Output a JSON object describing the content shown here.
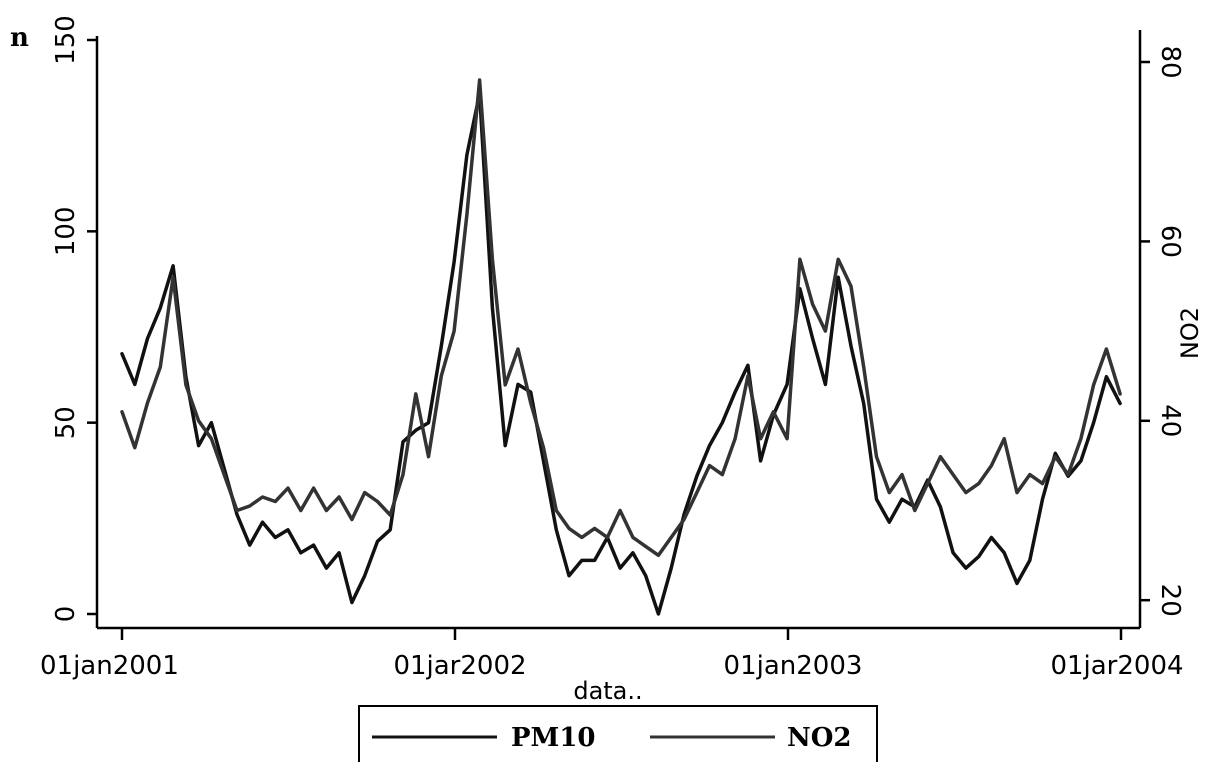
{
  "corner_label": "n",
  "chart_data": {
    "type": "line",
    "title": "",
    "xlabel": "data..",
    "ylabel_left": "",
    "ylabel_right": "NO2",
    "x_ticks": [
      "01jan2001",
      "01jar2002",
      "01jan2003",
      "01jar2004"
    ],
    "y_left_ticks": [
      "0",
      "50",
      "100",
      "150"
    ],
    "y_right_ticks": [
      "20",
      "40",
      "60",
      "80"
    ],
    "ylim_left": [
      0,
      150
    ],
    "ylim_right": [
      16.9,
      82.9
    ],
    "xlim": [
      "2001-01-01",
      "2004-01-01"
    ],
    "grid": false,
    "legend_position": "bottom",
    "series": [
      {
        "name": "PM10",
        "axis": "left",
        "color": "#111111",
        "points": [
          [
            "2001-01-01",
            68
          ],
          [
            "2001-01-15",
            60
          ],
          [
            "2001-01-29",
            72
          ],
          [
            "2001-02-12",
            80
          ],
          [
            "2001-02-26",
            91
          ],
          [
            "2001-03-12",
            62
          ],
          [
            "2001-03-26",
            44
          ],
          [
            "2001-04-09",
            50
          ],
          [
            "2001-04-23",
            38
          ],
          [
            "2001-05-07",
            26
          ],
          [
            "2001-05-21",
            18
          ],
          [
            "2001-06-04",
            24
          ],
          [
            "2001-06-18",
            20
          ],
          [
            "2001-07-02",
            22
          ],
          [
            "2001-07-16",
            16
          ],
          [
            "2001-07-30",
            18
          ],
          [
            "2001-08-13",
            12
          ],
          [
            "2001-08-27",
            16
          ],
          [
            "2001-09-10",
            3
          ],
          [
            "2001-09-24",
            10
          ],
          [
            "2001-10-08",
            19
          ],
          [
            "2001-10-22",
            22
          ],
          [
            "2001-11-05",
            45
          ],
          [
            "2001-11-19",
            48
          ],
          [
            "2001-12-03",
            50
          ],
          [
            "2001-12-17",
            70
          ],
          [
            "2001-12-31",
            92
          ],
          [
            "2002-01-14",
            120
          ],
          [
            "2002-01-28",
            136
          ],
          [
            "2002-02-11",
            80
          ],
          [
            "2002-02-25",
            44
          ],
          [
            "2002-03-11",
            60
          ],
          [
            "2002-03-25",
            58
          ],
          [
            "2002-04-08",
            40
          ],
          [
            "2002-04-22",
            22
          ],
          [
            "2002-05-06",
            10
          ],
          [
            "2002-05-20",
            14
          ],
          [
            "2002-06-03",
            14
          ],
          [
            "2002-06-17",
            20
          ],
          [
            "2002-07-01",
            12
          ],
          [
            "2002-07-15",
            16
          ],
          [
            "2002-07-29",
            10
          ],
          [
            "2002-08-12",
            0
          ],
          [
            "2002-08-26",
            12
          ],
          [
            "2002-09-09",
            26
          ],
          [
            "2002-09-23",
            36
          ],
          [
            "2002-10-07",
            44
          ],
          [
            "2002-10-21",
            50
          ],
          [
            "2002-11-04",
            58
          ],
          [
            "2002-11-18",
            65
          ],
          [
            "2002-12-02",
            40
          ],
          [
            "2002-12-16",
            52
          ],
          [
            "2002-12-31",
            60
          ],
          [
            "2003-01-14",
            85
          ],
          [
            "2003-01-28",
            72
          ],
          [
            "2003-02-11",
            60
          ],
          [
            "2003-02-25",
            88
          ],
          [
            "2003-03-11",
            70
          ],
          [
            "2003-03-25",
            55
          ],
          [
            "2003-04-08",
            30
          ],
          [
            "2003-04-22",
            24
          ],
          [
            "2003-05-06",
            30
          ],
          [
            "2003-05-20",
            28
          ],
          [
            "2003-06-03",
            35
          ],
          [
            "2003-06-17",
            28
          ],
          [
            "2003-07-01",
            16
          ],
          [
            "2003-07-15",
            12
          ],
          [
            "2003-07-29",
            15
          ],
          [
            "2003-08-12",
            20
          ],
          [
            "2003-08-26",
            16
          ],
          [
            "2003-09-09",
            8
          ],
          [
            "2003-09-23",
            14
          ],
          [
            "2003-10-07",
            30
          ],
          [
            "2003-10-21",
            42
          ],
          [
            "2003-11-04",
            36
          ],
          [
            "2003-11-18",
            40
          ],
          [
            "2003-12-02",
            50
          ],
          [
            "2003-12-16",
            62
          ],
          [
            "2003-12-31",
            55
          ]
        ]
      },
      {
        "name": "NO2",
        "axis": "right",
        "color": "#333333",
        "points": [
          [
            "2001-01-01",
            41
          ],
          [
            "2001-01-15",
            37
          ],
          [
            "2001-01-29",
            42
          ],
          [
            "2001-02-12",
            46
          ],
          [
            "2001-02-26",
            56
          ],
          [
            "2001-03-12",
            44
          ],
          [
            "2001-03-26",
            40
          ],
          [
            "2001-04-09",
            38
          ],
          [
            "2001-04-23",
            34
          ],
          [
            "2001-05-07",
            30
          ],
          [
            "2001-05-21",
            30.5
          ],
          [
            "2001-06-04",
            31.5
          ],
          [
            "2001-06-18",
            31
          ],
          [
            "2001-07-02",
            32.5
          ],
          [
            "2001-07-16",
            30
          ],
          [
            "2001-07-30",
            32.5
          ],
          [
            "2001-08-13",
            30
          ],
          [
            "2001-08-27",
            31.5
          ],
          [
            "2001-09-10",
            29
          ],
          [
            "2001-09-24",
            32
          ],
          [
            "2001-10-08",
            31
          ],
          [
            "2001-10-22",
            29.5
          ],
          [
            "2001-11-05",
            34
          ],
          [
            "2001-11-19",
            43
          ],
          [
            "2001-12-03",
            36
          ],
          [
            "2001-12-17",
            45
          ],
          [
            "2001-12-31",
            50
          ],
          [
            "2002-01-14",
            63
          ],
          [
            "2002-01-28",
            78
          ],
          [
            "2002-02-11",
            58
          ],
          [
            "2002-02-25",
            44
          ],
          [
            "2002-03-11",
            48
          ],
          [
            "2002-03-25",
            42
          ],
          [
            "2002-04-08",
            37
          ],
          [
            "2002-04-22",
            30
          ],
          [
            "2002-05-06",
            28
          ],
          [
            "2002-05-20",
            27
          ],
          [
            "2002-06-03",
            28
          ],
          [
            "2002-06-17",
            27
          ],
          [
            "2002-07-01",
            30
          ],
          [
            "2002-07-15",
            27
          ],
          [
            "2002-07-29",
            26
          ],
          [
            "2002-08-12",
            25
          ],
          [
            "2002-08-26",
            27
          ],
          [
            "2002-09-09",
            29
          ],
          [
            "2002-09-23",
            32
          ],
          [
            "2002-10-07",
            35
          ],
          [
            "2002-10-21",
            34
          ],
          [
            "2002-11-04",
            38
          ],
          [
            "2002-11-18",
            45
          ],
          [
            "2002-12-02",
            38
          ],
          [
            "2002-12-16",
            41
          ],
          [
            "2002-12-31",
            38
          ],
          [
            "2003-01-14",
            58
          ],
          [
            "2003-01-28",
            53
          ],
          [
            "2003-02-11",
            50
          ],
          [
            "2003-02-25",
            58
          ],
          [
            "2003-03-11",
            55
          ],
          [
            "2003-03-25",
            46
          ],
          [
            "2003-04-08",
            36
          ],
          [
            "2003-04-22",
            32
          ],
          [
            "2003-05-06",
            34
          ],
          [
            "2003-05-20",
            30
          ],
          [
            "2003-06-03",
            33
          ],
          [
            "2003-06-17",
            36
          ],
          [
            "2003-07-01",
            34
          ],
          [
            "2003-07-15",
            32
          ],
          [
            "2003-07-29",
            33
          ],
          [
            "2003-08-12",
            35
          ],
          [
            "2003-08-26",
            38
          ],
          [
            "2003-09-09",
            32
          ],
          [
            "2003-09-23",
            34
          ],
          [
            "2003-10-07",
            33
          ],
          [
            "2003-10-21",
            36
          ],
          [
            "2003-11-04",
            34
          ],
          [
            "2003-11-18",
            38
          ],
          [
            "2003-12-02",
            44
          ],
          [
            "2003-12-16",
            48
          ],
          [
            "2003-12-31",
            43
          ]
        ]
      }
    ]
  }
}
